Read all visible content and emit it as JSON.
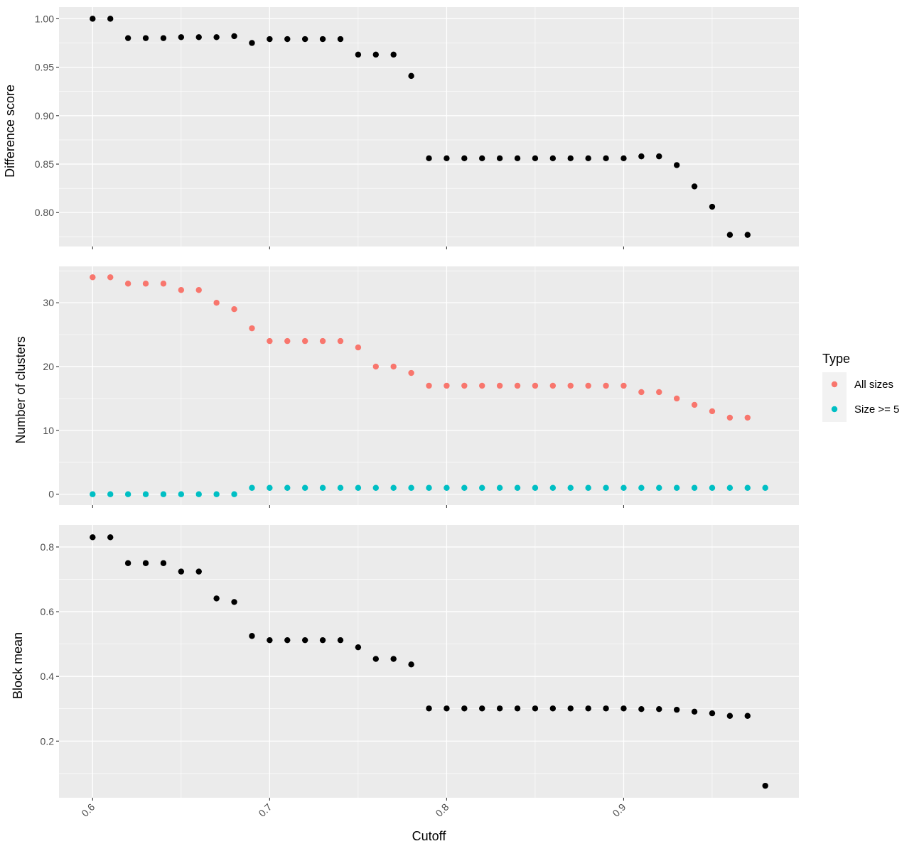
{
  "chart_data": [
    {
      "type": "scatter",
      "ylabel": "Difference score",
      "ylim": [
        0.765,
        1.012
      ],
      "yticks": [
        "1.00",
        "0.95",
        "0.90",
        "0.85",
        "0.80"
      ],
      "grid": true,
      "series": [
        {
          "color": "#000000",
          "x": [
            0.6,
            0.61,
            0.62,
            0.63,
            0.64,
            0.65,
            0.66,
            0.67,
            0.68,
            0.69,
            0.7,
            0.71,
            0.72,
            0.73,
            0.74,
            0.75,
            0.76,
            0.77,
            0.78,
            0.79,
            0.8,
            0.81,
            0.82,
            0.83,
            0.84,
            0.85,
            0.86,
            0.87,
            0.88,
            0.89,
            0.9,
            0.91,
            0.92,
            0.93,
            0.94,
            0.95,
            0.96,
            0.97
          ],
          "y": [
            1.0,
            1.0,
            0.98,
            0.98,
            0.98,
            0.981,
            0.981,
            0.981,
            0.982,
            0.975,
            0.979,
            0.979,
            0.979,
            0.979,
            0.979,
            0.963,
            0.963,
            0.963,
            0.941,
            0.856,
            0.856,
            0.856,
            0.856,
            0.856,
            0.856,
            0.856,
            0.856,
            0.856,
            0.856,
            0.856,
            0.856,
            0.858,
            0.858,
            0.849,
            0.827,
            0.806,
            0.777,
            0.777
          ]
        }
      ]
    },
    {
      "type": "scatter",
      "ylabel": "Number of clusters",
      "ylim": [
        -1.7,
        35.7
      ],
      "yticks": [
        "30",
        "20",
        "10",
        "0"
      ],
      "grid": true,
      "legend": {
        "title": "Type",
        "position": "right",
        "items": [
          {
            "label": "All sizes",
            "color": "#F8766D"
          },
          {
            "label": "Size >= 5",
            "color": "#00BFC4"
          }
        ]
      },
      "series": [
        {
          "name": "All sizes",
          "color": "#F8766D",
          "x": [
            0.6,
            0.61,
            0.62,
            0.63,
            0.64,
            0.65,
            0.66,
            0.67,
            0.68,
            0.69,
            0.7,
            0.71,
            0.72,
            0.73,
            0.74,
            0.75,
            0.76,
            0.77,
            0.78,
            0.79,
            0.8,
            0.81,
            0.82,
            0.83,
            0.84,
            0.85,
            0.86,
            0.87,
            0.88,
            0.89,
            0.9,
            0.91,
            0.92,
            0.93,
            0.94,
            0.95,
            0.96,
            0.97
          ],
          "y": [
            34,
            34,
            33,
            33,
            33,
            32,
            32,
            30,
            29,
            26,
            24,
            24,
            24,
            24,
            24,
            23,
            20,
            20,
            19,
            17,
            17,
            17,
            17,
            17,
            17,
            17,
            17,
            17,
            17,
            17,
            17,
            16,
            16,
            15,
            14,
            13,
            12,
            12
          ]
        },
        {
          "name": "Size >= 5",
          "color": "#00BFC4",
          "x": [
            0.6,
            0.61,
            0.62,
            0.63,
            0.64,
            0.65,
            0.66,
            0.67,
            0.68,
            0.69,
            0.7,
            0.71,
            0.72,
            0.73,
            0.74,
            0.75,
            0.76,
            0.77,
            0.78,
            0.79,
            0.8,
            0.81,
            0.82,
            0.83,
            0.84,
            0.85,
            0.86,
            0.87,
            0.88,
            0.89,
            0.9,
            0.91,
            0.92,
            0.93,
            0.94,
            0.95,
            0.96,
            0.97,
            0.98
          ],
          "y": [
            0,
            0,
            0,
            0,
            0,
            0,
            0,
            0,
            0,
            1,
            1,
            1,
            1,
            1,
            1,
            1,
            1,
            1,
            1,
            1,
            1,
            1,
            1,
            1,
            1,
            1,
            1,
            1,
            1,
            1,
            1,
            1,
            1,
            1,
            1,
            1,
            1,
            1,
            1
          ]
        }
      ]
    },
    {
      "type": "scatter",
      "ylabel": "Block mean",
      "ylim": [
        0.025,
        0.868
      ],
      "yticks": [
        "0.8",
        "0.6",
        "0.4",
        "0.2"
      ],
      "grid": true,
      "series": [
        {
          "color": "#000000",
          "x": [
            0.6,
            0.61,
            0.62,
            0.63,
            0.64,
            0.65,
            0.66,
            0.67,
            0.68,
            0.69,
            0.7,
            0.71,
            0.72,
            0.73,
            0.74,
            0.75,
            0.76,
            0.77,
            0.78,
            0.79,
            0.8,
            0.81,
            0.82,
            0.83,
            0.84,
            0.85,
            0.86,
            0.87,
            0.88,
            0.89,
            0.9,
            0.91,
            0.92,
            0.93,
            0.94,
            0.95,
            0.96,
            0.97,
            0.98
          ],
          "y": [
            0.83,
            0.83,
            0.75,
            0.75,
            0.75,
            0.724,
            0.724,
            0.641,
            0.63,
            0.525,
            0.512,
            0.512,
            0.512,
            0.512,
            0.512,
            0.49,
            0.454,
            0.454,
            0.437,
            0.301,
            0.301,
            0.301,
            0.301,
            0.301,
            0.301,
            0.301,
            0.301,
            0.301,
            0.301,
            0.301,
            0.301,
            0.299,
            0.299,
            0.297,
            0.291,
            0.286,
            0.278,
            0.278,
            0.062
          ]
        }
      ]
    }
  ],
  "x_axis": {
    "label": "Cutoff",
    "xlim": [
      0.581,
      0.999
    ],
    "ticks": [
      "0.6",
      "0.7",
      "0.8",
      "0.9"
    ]
  }
}
